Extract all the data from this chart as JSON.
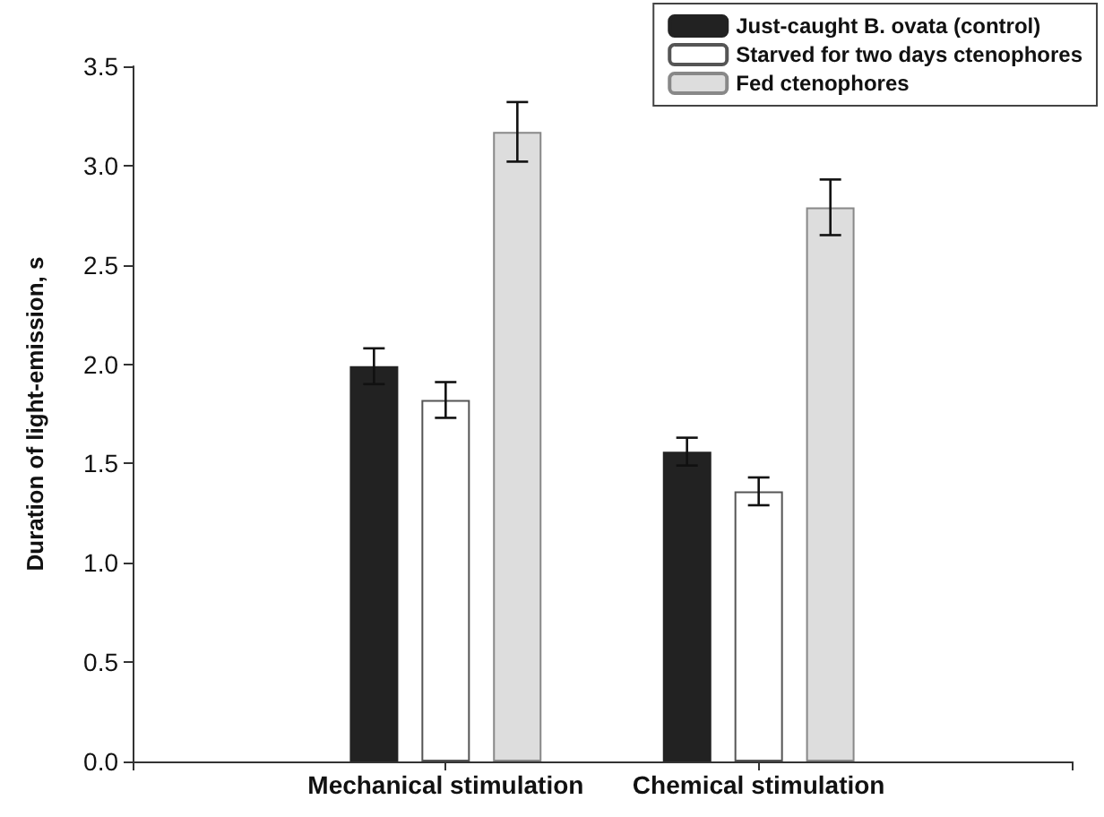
{
  "chart_data": {
    "type": "bar",
    "ylabel": "Duration of light-emission, s",
    "categories": [
      "Mechanical stimulation",
      "Chemical stimulation"
    ],
    "series": [
      {
        "name": "Just-caught B. ovata (control)",
        "color": "#222222",
        "values": [
          1.99,
          1.56
        ],
        "errors": [
          0.09,
          0.07
        ]
      },
      {
        "name": "Starved for two days ctenophores",
        "color": "#ffffff",
        "values": [
          1.82,
          1.36
        ],
        "errors": [
          0.09,
          0.07
        ]
      },
      {
        "name": "Fed ctenophores",
        "color": "#dddddd",
        "values": [
          3.17,
          2.79
        ],
        "errors": [
          0.15,
          0.14
        ]
      }
    ],
    "ylim": [
      0,
      3.5
    ],
    "yticks": [
      {
        "value": 0,
        "label": "0.0"
      },
      0.5,
      {
        "value": 1,
        "label": "1.0"
      },
      1.5,
      {
        "value": 2,
        "label": "2.0"
      },
      2.5,
      {
        "value": 3,
        "label": "3.0"
      },
      3.5
    ],
    "grid": false,
    "legend": "top right"
  }
}
